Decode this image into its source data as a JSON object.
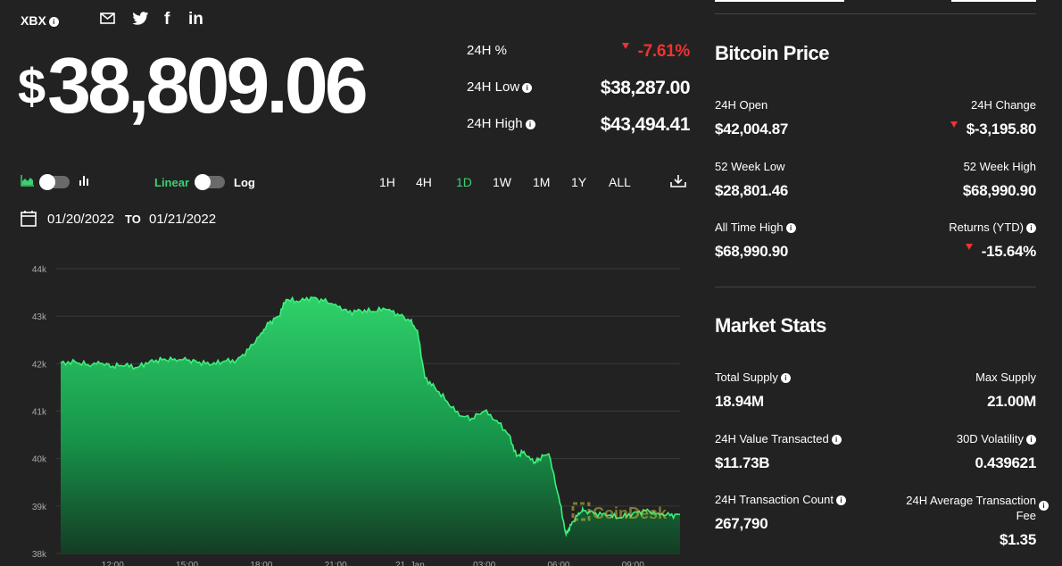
{
  "ticker": "XBX",
  "price": "$38,809.06",
  "top_stats": [
    {
      "label": "24H %",
      "value": "-7.61%",
      "down": true
    },
    {
      "label": "24H Low",
      "value": "$38,287.00"
    },
    {
      "label": "24H High",
      "value": "$43,494.41"
    }
  ],
  "chart_controls": {
    "linear_label": "Linear",
    "log_label": "Log",
    "ranges": [
      "1H",
      "4H",
      "1D",
      "1W",
      "1M",
      "1Y",
      "ALL"
    ],
    "active_range": "1D",
    "date_from": "01/20/2022",
    "to_label": "TO",
    "date_to": "01/21/2022"
  },
  "watermark": "CoinDesk",
  "bitcoin_price": {
    "title": "Bitcoin Price",
    "open_label": "24H Open",
    "open_value": "$42,004.87",
    "change_label": "24H Change",
    "change_value": "$-3,195.80",
    "wk52_low_label": "52 Week Low",
    "wk52_low_value": "$28,801.46",
    "wk52_high_label": "52 Week High",
    "wk52_high_value": "$68,990.90",
    "ath_label": "All Time High",
    "ath_value": "$68,990.90",
    "ytd_label": "Returns (YTD)",
    "ytd_value": "-15.64%"
  },
  "market_stats": {
    "title": "Market Stats",
    "supply_label": "Total Supply",
    "supply_value": "18.94M",
    "max_label": "Max Supply",
    "max_value": "21.00M",
    "value_tx_label": "24H Value Transacted",
    "value_tx_value": "$11.73B",
    "vol_label": "30D Volatility",
    "vol_value": "0.439621",
    "tx_count_label": "24H Transaction Count",
    "tx_count_value": "267,790",
    "fee_label_1": "24H Average Transaction",
    "fee_label_2": "Fee",
    "fee_value": "$1.35"
  },
  "colors": {
    "background": "#222222",
    "accent_green": "#3cd070",
    "negative_red": "#f03232"
  },
  "chart_data": {
    "type": "area",
    "ylim": [
      38000,
      44000
    ],
    "y_ticks": [
      "44k",
      "43k",
      "42k",
      "41k",
      "40k",
      "39k",
      "38k"
    ],
    "y_tick_values": [
      44000,
      43000,
      42000,
      41000,
      40000,
      39000,
      38000
    ],
    "x_ticks": [
      "12:00",
      "15:00",
      "18:00",
      "21:00",
      "21. Jan",
      "03:00",
      "06:00",
      "09:00"
    ],
    "x_tick_hours": [
      12,
      15,
      18,
      21,
      24,
      27,
      30,
      33
    ],
    "x_range_hours": [
      9.9,
      34.9
    ],
    "x": [
      9.9,
      10.5,
      11,
      11.5,
      12,
      12.5,
      13,
      13.5,
      14,
      14.5,
      15,
      15.5,
      16,
      16.5,
      17,
      17.5,
      18,
      18.3,
      18.7,
      19,
      19.5,
      20,
      20.5,
      21,
      21.5,
      22,
      22.5,
      23,
      23.5,
      24,
      24.3,
      24.6,
      25,
      25.5,
      26,
      26.5,
      27,
      27.5,
      28,
      28.3,
      28.6,
      29,
      29.2,
      29.6,
      30,
      30.3,
      30.5,
      30.8,
      31,
      31.5,
      32,
      32.5,
      33,
      33.5,
      34,
      34.5,
      34.9
    ],
    "y": [
      42020,
      42030,
      41980,
      42000,
      41950,
      41960,
      41920,
      42050,
      42080,
      42100,
      42070,
      42030,
      41980,
      42050,
      42070,
      42300,
      42650,
      42850,
      43000,
      43350,
      43300,
      43400,
      43320,
      43250,
      43080,
      43120,
      43100,
      43150,
      43050,
      42900,
      42700,
      41700,
      41500,
      41200,
      40900,
      40850,
      41000,
      40800,
      40500,
      40050,
      40150,
      39900,
      40000,
      40100,
      39200,
      38400,
      38600,
      38850,
      38900,
      38850,
      38800,
      38750,
      38850,
      38900,
      38850,
      38800,
      38820
    ]
  }
}
